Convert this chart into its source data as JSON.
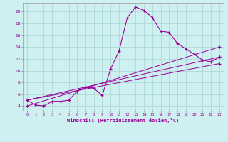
{
  "background_color": "#cff0f0",
  "grid_color": "#aad4d4",
  "line_color": "#990099",
  "xlabel": "Windchill (Refroidissement éolien,°C)",
  "ylabel_ticks": [
    4,
    6,
    8,
    10,
    12,
    14,
    16,
    18,
    20
  ],
  "xticks": [
    0,
    1,
    2,
    3,
    4,
    5,
    6,
    7,
    8,
    9,
    10,
    11,
    12,
    13,
    14,
    15,
    16,
    17,
    18,
    19,
    20,
    21,
    22,
    23
  ],
  "xlim": [
    -0.5,
    23.5
  ],
  "ylim": [
    3.2,
    21.5
  ],
  "main_curve": [
    5.0,
    4.2,
    4.0,
    4.8,
    4.8,
    5.0,
    6.5,
    7.2,
    7.0,
    5.8,
    10.3,
    13.3,
    19.0,
    20.8,
    20.2,
    19.0,
    16.7,
    16.5,
    14.6,
    13.7,
    12.8,
    11.8,
    11.5,
    12.3
  ],
  "linear_lines": [
    {
      "x": [
        0,
        23
      ],
      "y": [
        5.0,
        12.3
      ]
    },
    {
      "x": [
        0,
        23
      ],
      "y": [
        5.0,
        11.5
      ]
    },
    {
      "x": [
        0,
        23
      ],
      "y": [
        4.0,
        13.5
      ]
    }
  ],
  "linear_markers_x": [
    [
      0,
      7,
      14,
      19,
      22,
      23
    ],
    [
      0,
      7,
      14,
      19,
      22,
      23
    ],
    [
      0,
      7,
      14,
      20,
      22,
      23
    ]
  ]
}
